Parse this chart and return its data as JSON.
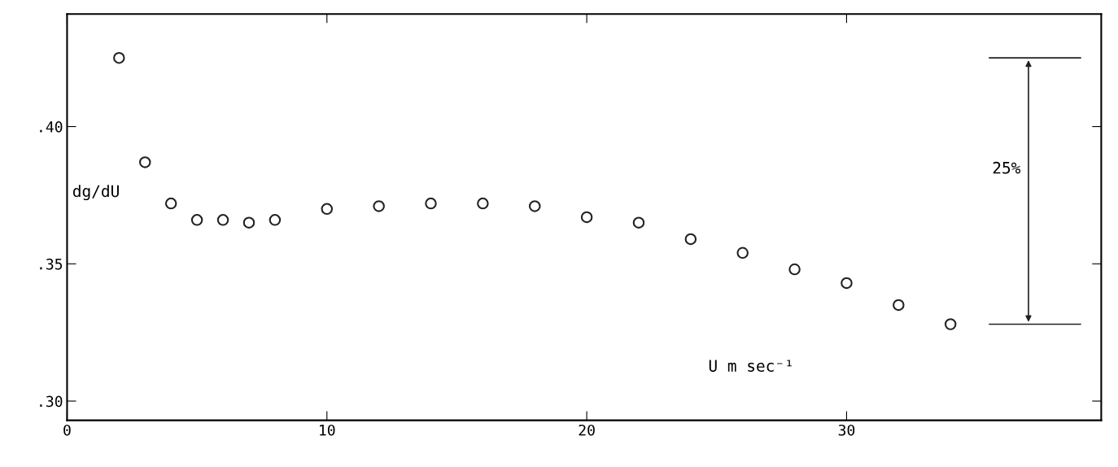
{
  "chart_data": {
    "type": "scatter",
    "xlabel": "U m sec⁻¹",
    "ylabel": "dg/dU",
    "x": [
      2,
      3,
      4,
      5,
      6,
      7,
      8,
      10,
      12,
      14,
      16,
      18,
      20,
      22,
      24,
      26,
      28,
      30,
      32,
      34
    ],
    "series": [
      {
        "color": "#222222",
        "values": [
          0.425,
          0.387,
          0.372,
          0.366,
          0.366,
          0.365,
          0.366,
          0.37,
          0.371,
          0.372,
          0.372,
          0.371,
          0.367,
          0.365,
          0.359,
          0.354,
          0.348,
          0.343,
          0.335,
          0.328
        ]
      }
    ],
    "marker": "circle",
    "grid": false,
    "legend": false,
    "xlim": [
      0,
      39.8
    ],
    "xticks": [
      0,
      10,
      20,
      30
    ],
    "ylim": [
      0.293,
      0.441
    ],
    "yticks": [
      {
        "value": 0.3,
        "label": ".30"
      },
      {
        "value": 0.35,
        "label": ".35"
      },
      {
        "value": 0.4,
        "label": ".40"
      }
    ],
    "annotations": [
      "25%"
    ]
  }
}
